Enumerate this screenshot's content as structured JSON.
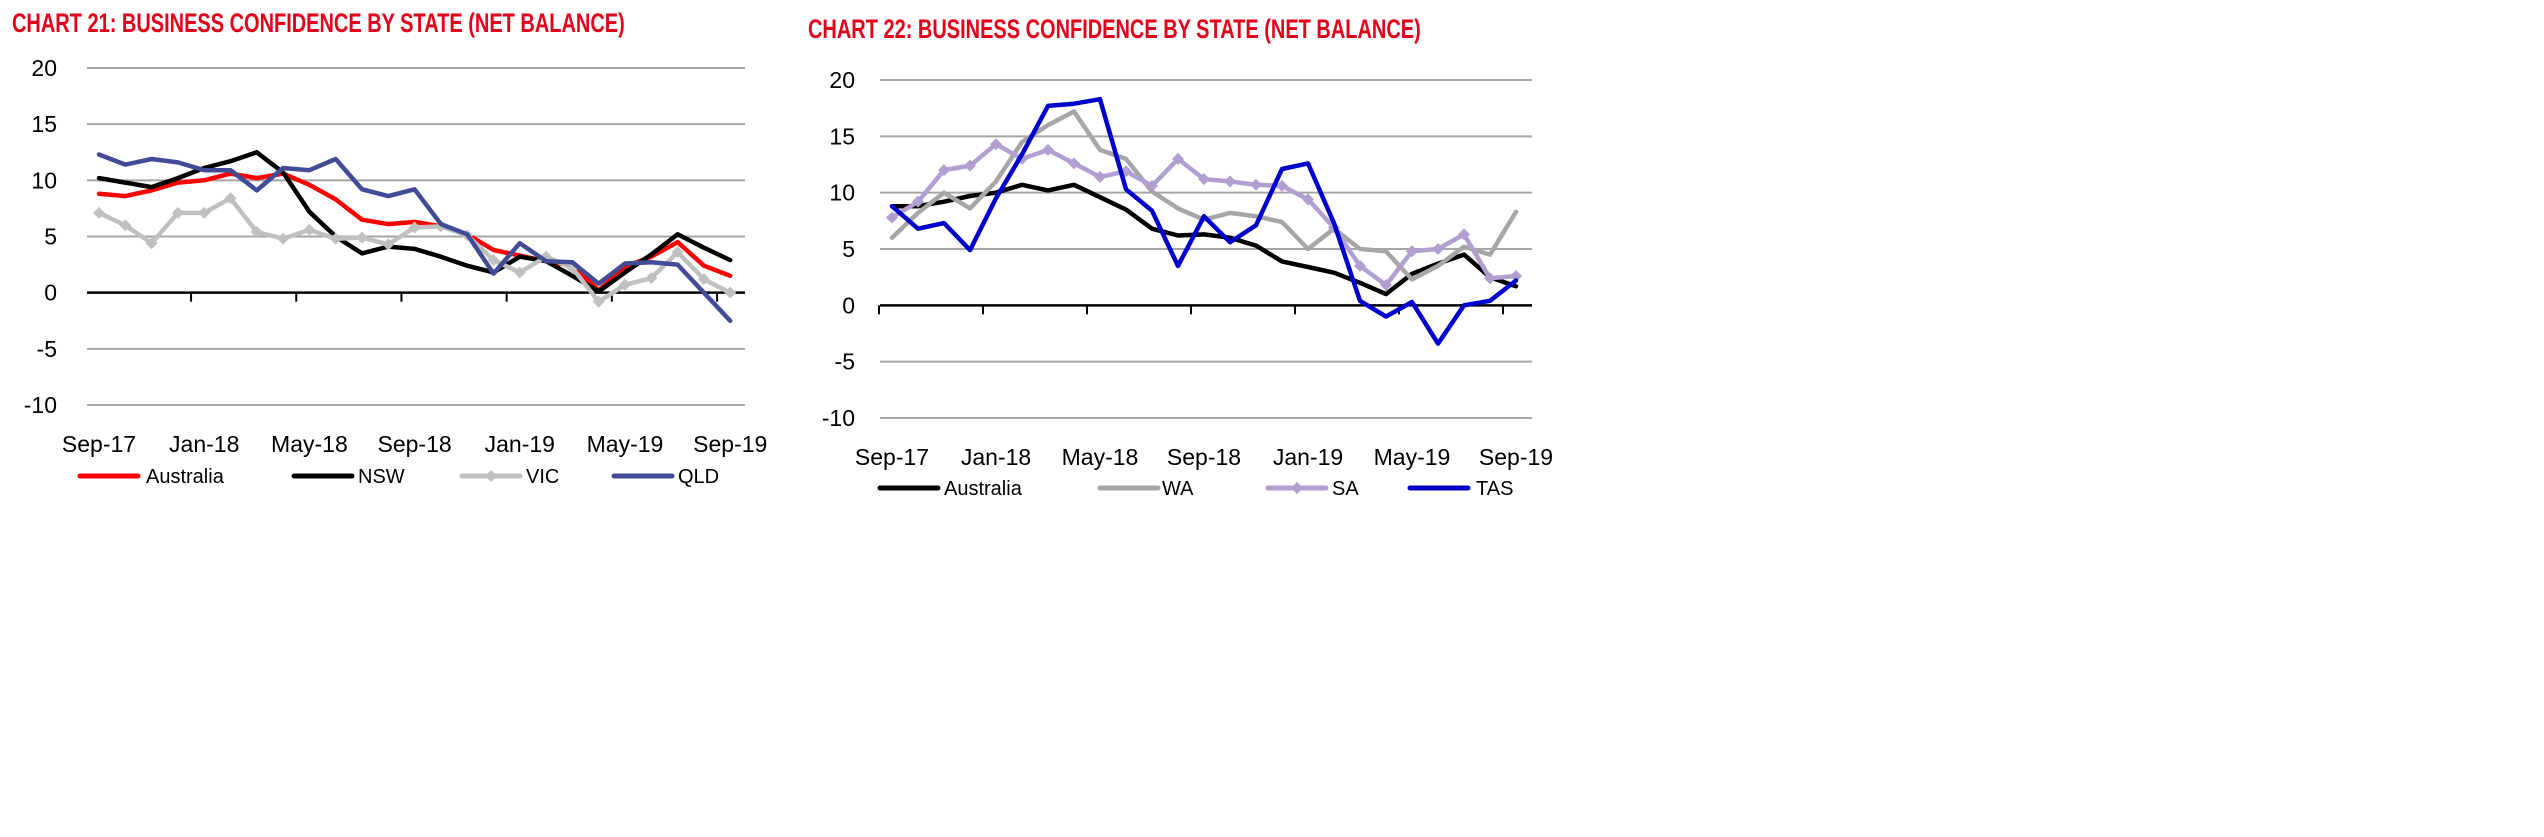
{
  "chart_data": [
    {
      "type": "line",
      "title": "CHART 21: BUSINESS CONFIDENCE BY STATE (NET BALANCE)",
      "xlabel": "",
      "ylabel": "",
      "ylim": [
        -10,
        20
      ],
      "yticks": [
        "20",
        "15",
        "10",
        "5",
        "0",
        "-5",
        "-10"
      ],
      "x_tick_labels": [
        "Sep-17",
        "Jan-18",
        "May-18",
        "Sep-18",
        "Jan-19",
        "May-19",
        "Sep-19"
      ],
      "grid": true,
      "legend_position": "bottom",
      "series": [
        {
          "name": "Australia",
          "color": "#ff0000",
          "marker": "none",
          "values": [
            8.8,
            8.6,
            9.1,
            9.8,
            10.0,
            10.6,
            10.2,
            10.6,
            9.6,
            8.3,
            6.5,
            6.1,
            6.3,
            5.9,
            5.2,
            3.8,
            3.3,
            2.8,
            2.4,
            0.2,
            2.3,
            3.2,
            4.5,
            2.4,
            1.5
          ]
        },
        {
          "name": "NSW",
          "color": "#000000",
          "marker": "none",
          "values": [
            10.2,
            9.8,
            9.4,
            10.2,
            11.1,
            11.7,
            12.5,
            10.7,
            7.2,
            5.0,
            3.5,
            4.1,
            3.9,
            3.2,
            2.4,
            1.8,
            3.2,
            2.8,
            1.5,
            0.1,
            1.8,
            3.4,
            5.2,
            4.0,
            2.9
          ]
        },
        {
          "name": "VIC",
          "color": "#c0c0c0",
          "marker": "diamond",
          "values": [
            7.1,
            6.0,
            4.4,
            7.1,
            7.1,
            8.4,
            5.4,
            4.8,
            5.6,
            4.8,
            4.9,
            4.3,
            5.8,
            5.9,
            5.1,
            2.9,
            1.8,
            3.2,
            2.2,
            -0.8,
            0.7,
            1.3,
            3.6,
            1.2,
            0.0
          ]
        },
        {
          "name": "QLD",
          "color": "#414b96",
          "marker": "none",
          "values": [
            12.3,
            11.4,
            11.9,
            11.6,
            10.9,
            10.9,
            9.1,
            11.1,
            10.9,
            11.9,
            9.2,
            8.6,
            9.2,
            6.1,
            5.2,
            1.7,
            4.4,
            2.8,
            2.7,
            0.8,
            2.6,
            2.7,
            2.5,
            0.0,
            -2.5
          ]
        }
      ]
    },
    {
      "type": "line",
      "title": "CHART 22: BUSINESS CONFIDENCE BY STATE (NET BALANCE)",
      "xlabel": "",
      "ylabel": "",
      "ylim": [
        -10,
        20
      ],
      "yticks": [
        "20",
        "15",
        "10",
        "5",
        "0",
        "-5",
        "-10"
      ],
      "x_tick_labels": [
        "Sep-17",
        "Jan-18",
        "May-18",
        "Sep-18",
        "Jan-19",
        "May-19",
        "Sep-19"
      ],
      "grid": true,
      "legend_position": "bottom",
      "series": [
        {
          "name": "Australia",
          "color": "#000000",
          "marker": "none",
          "values": [
            8.8,
            8.8,
            9.2,
            9.7,
            10.0,
            10.7,
            10.2,
            10.7,
            9.6,
            8.5,
            6.8,
            6.2,
            6.3,
            6.0,
            5.3,
            3.9,
            3.4,
            2.9,
            2.0,
            1.0,
            2.8,
            3.7,
            4.5,
            2.5,
            1.7
          ]
        },
        {
          "name": "WA",
          "color": "#a6a6a6",
          "marker": "none",
          "values": [
            6.0,
            8.2,
            10.0,
            8.6,
            11.0,
            14.5,
            16.0,
            17.2,
            13.8,
            13.0,
            10.1,
            8.6,
            7.6,
            8.2,
            7.9,
            7.4,
            5.0,
            6.8,
            5.0,
            4.8,
            2.3,
            3.5,
            5.2,
            4.5,
            8.3
          ]
        },
        {
          "name": "SA",
          "color": "#b09fd0",
          "marker": "diamond",
          "values": [
            7.8,
            9.2,
            12.0,
            12.4,
            14.3,
            13.0,
            13.8,
            12.6,
            11.4,
            11.9,
            10.6,
            13.0,
            11.2,
            11.0,
            10.7,
            10.6,
            9.4,
            6.9,
            3.5,
            1.8,
            4.8,
            5.0,
            6.3,
            2.4,
            2.6
          ]
        },
        {
          "name": "TAS",
          "color": "#0000cc",
          "marker": "none",
          "values": [
            8.8,
            6.8,
            7.3,
            4.9,
            9.5,
            13.4,
            17.7,
            17.9,
            18.3,
            10.3,
            8.4,
            3.5,
            7.9,
            5.6,
            7.1,
            12.1,
            12.6,
            7.3,
            0.4,
            -1.0,
            0.3,
            -3.4,
            0.0,
            0.4,
            2.2
          ]
        }
      ]
    }
  ]
}
